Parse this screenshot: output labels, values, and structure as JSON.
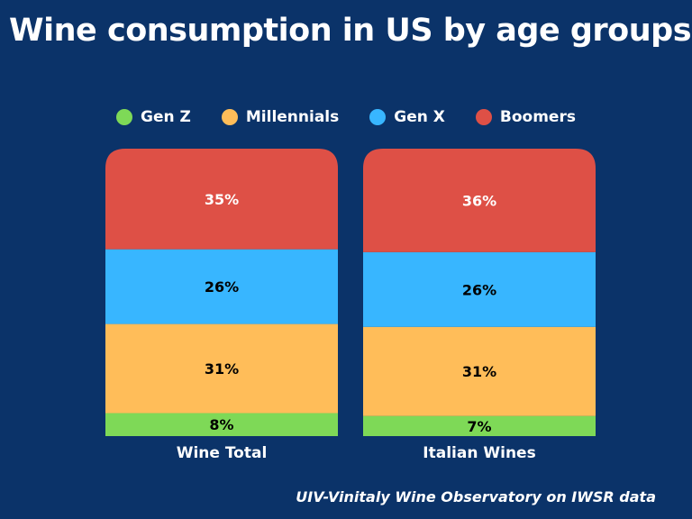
{
  "chart_data": {
    "type": "bar",
    "stacked": true,
    "normalized": true,
    "title": "Wine consumption in US by age groups",
    "source": "UIV-Vinitaly Wine Observatory on IWSR data",
    "categories": [
      "Wine Total",
      "Italian Wines"
    ],
    "series": [
      {
        "name": "Gen Z",
        "color": "#7ed957",
        "label_color": "#000000",
        "values": [
          8,
          7
        ],
        "labels": [
          "8%",
          "7%"
        ]
      },
      {
        "name": "Millennials",
        "color": "#ffbd59",
        "label_color": "#000000",
        "values": [
          31,
          31
        ],
        "labels": [
          "31%",
          "31%"
        ]
      },
      {
        "name": "Gen X",
        "color": "#38b6ff",
        "label_color": "#000000",
        "values": [
          26,
          26
        ],
        "labels": [
          "26%",
          "26%"
        ]
      },
      {
        "name": "Boomers",
        "color": "#de5046",
        "label_color": "#ffffff",
        "values": [
          35,
          36
        ],
        "labels": [
          "35%",
          "36%"
        ]
      }
    ],
    "legend_position": "top",
    "grid": false,
    "background": "#0b3369"
  }
}
